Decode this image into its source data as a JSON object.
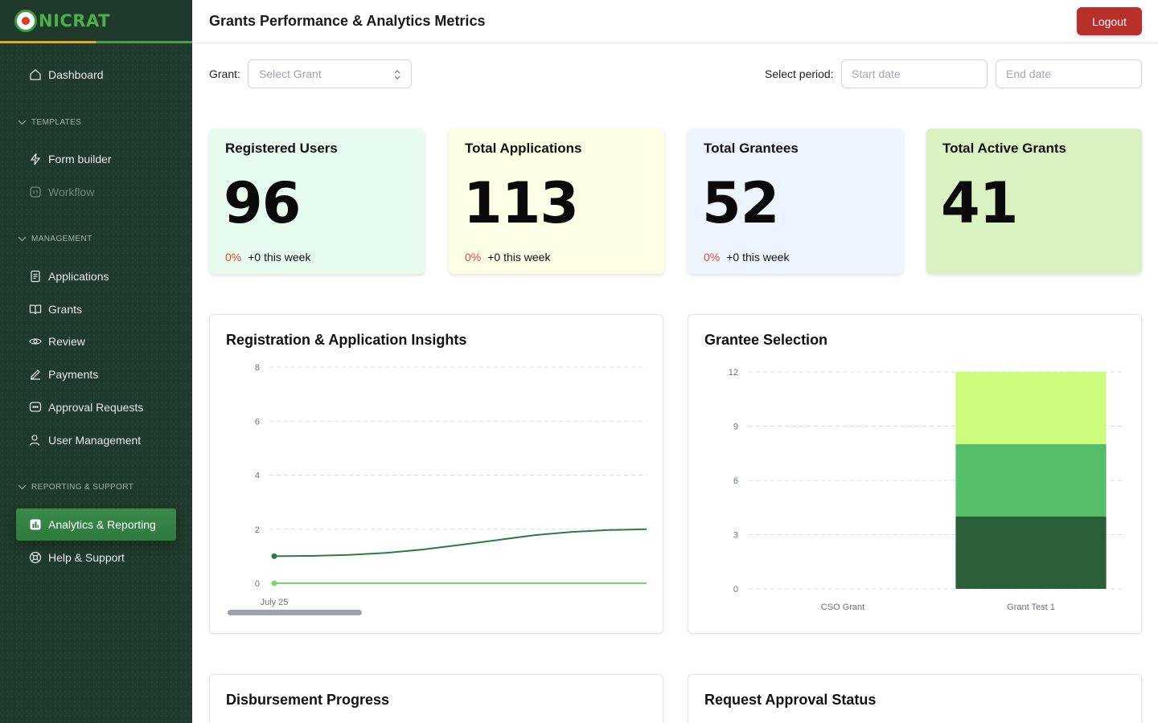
{
  "app": {
    "logo_text": "NICRAT"
  },
  "sidebar": {
    "dashboard": "Dashboard",
    "sections": {
      "templates": "TEMPLATES",
      "management": "MANAGEMENT",
      "reporting": "REPORTING & SUPPORT"
    },
    "templates": [
      {
        "label": "Form builder"
      },
      {
        "label": "Workflow"
      }
    ],
    "management": [
      {
        "label": "Applications"
      },
      {
        "label": "Grants"
      },
      {
        "label": "Review"
      },
      {
        "label": "Payments"
      },
      {
        "label": "Approval Requests"
      },
      {
        "label": "User Management"
      }
    ],
    "reporting": [
      {
        "label": "Analytics & Reporting"
      },
      {
        "label": "Help & Support"
      }
    ]
  },
  "header": {
    "title": "Grants Performance & Analytics Metrics",
    "logout_label": "Logout"
  },
  "filters": {
    "grant_label": "Grant:",
    "grant_placeholder": "Select Grant",
    "period_label": "Select period:",
    "start_placeholder": "Start date",
    "end_placeholder": "End date"
  },
  "stats": [
    {
      "title": "Registered Users",
      "value": "96",
      "pct": "0%",
      "delta": "+0 this week",
      "bg": "#e7fbee"
    },
    {
      "title": "Total Applications",
      "value": "113",
      "pct": "0%",
      "delta": "+0 this week",
      "bg": "#fdfee6"
    },
    {
      "title": "Total Grantees",
      "value": "52",
      "pct": "0%",
      "delta": "+0 this week",
      "bg": "#eef5fe"
    },
    {
      "title": "Total Active Grants",
      "value": "41",
      "bg": "#daf2c2"
    }
  ],
  "panels": {
    "insights_title": "Registration & Application Insights",
    "grantee_title": "Grantee Selection",
    "disbursement_title": "Disbursement Progress",
    "approval_title": "Request Approval Status"
  },
  "chart_data": [
    {
      "type": "line",
      "x": [
        "July 25",
        "",
        "",
        "",
        "",
        "",
        "",
        "",
        "",
        "",
        ""
      ],
      "ylim": [
        0,
        8
      ],
      "yticks": [
        0,
        2,
        4,
        6,
        8
      ],
      "series": [
        {
          "color": "#2f7a3f",
          "values": [
            1,
            1.01,
            1.05,
            1.12,
            1.25,
            1.42,
            1.6,
            1.78,
            1.9,
            1.97,
            2
          ]
        },
        {
          "color": "#7fd36b",
          "values": [
            0,
            0,
            0,
            0,
            0,
            0,
            0,
            0,
            0,
            0,
            0
          ]
        }
      ],
      "grid": true,
      "legend": "none"
    },
    {
      "type": "bar",
      "stacked": true,
      "categories": [
        "CSO Grant",
        "Grant Test 1"
      ],
      "ylim": [
        0,
        12
      ],
      "yticks": [
        0,
        3,
        6,
        9,
        12
      ],
      "series": [
        {
          "color": "#2a5f3a",
          "values": [
            0,
            4
          ]
        },
        {
          "color": "#55be69",
          "values": [
            0,
            4
          ]
        },
        {
          "color": "#cdfc7c",
          "values": [
            0,
            4
          ]
        }
      ],
      "grid": true,
      "legend": "none"
    }
  ]
}
